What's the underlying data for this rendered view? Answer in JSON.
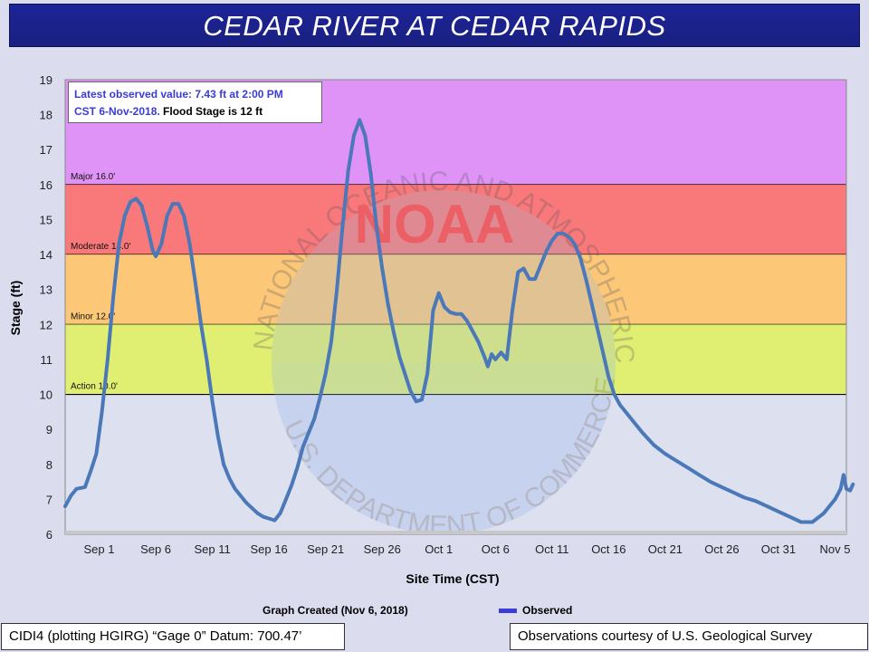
{
  "header": {
    "title": "CEDAR RIVER AT CEDAR RAPIDS"
  },
  "info": {
    "line1": "Latest observed value: 7.43 ft at 2:00 PM",
    "line2_blue": "CST 6-Nov-2018.",
    "line2_black": "Flood Stage is 12 ft"
  },
  "footer": {
    "created": "Graph Created (Nov 6, 2018)",
    "legend_label": "Observed",
    "datum": "CIDI4 (plotting HGIRG) “Gage 0” Datum: 700.47’",
    "courtesy": "Observations courtesy of U.S. Geological Survey"
  },
  "colors": {
    "line": "#4a78b8",
    "major": "#e08cf6",
    "moderate": "#fb6f6f",
    "minor": "#fec66e",
    "action": "#dff066",
    "normal": "#dde0ee"
  },
  "watermark": {
    "ring_text": "NATIONAL OCEANIC AND ATMOSPHERIC ADMINISTRATION",
    "bottom_text": "U.S. DEPARTMENT OF COMMERCE",
    "logo": "NOAA"
  },
  "chart_data": {
    "type": "line",
    "xlabel": "Site Time (CST)",
    "ylabel": "Stage (ft)",
    "ylim": [
      6,
      19
    ],
    "xlim": [
      "2018-08-29",
      "2018-11-06"
    ],
    "yticks": [
      6,
      7,
      8,
      9,
      10,
      11,
      12,
      13,
      14,
      15,
      16,
      17,
      18,
      19
    ],
    "xticks": [
      {
        "date": "2018-09-01",
        "label": "Sep 1"
      },
      {
        "date": "2018-09-06",
        "label": "Sep 6"
      },
      {
        "date": "2018-09-11",
        "label": "Sep 11"
      },
      {
        "date": "2018-09-16",
        "label": "Sep 16"
      },
      {
        "date": "2018-09-21",
        "label": "Sep 21"
      },
      {
        "date": "2018-09-26",
        "label": "Sep 26"
      },
      {
        "date": "2018-10-01",
        "label": "Oct 1"
      },
      {
        "date": "2018-10-06",
        "label": "Oct 6"
      },
      {
        "date": "2018-10-11",
        "label": "Oct 11"
      },
      {
        "date": "2018-10-16",
        "label": "Oct 16"
      },
      {
        "date": "2018-10-21",
        "label": "Oct 21"
      },
      {
        "date": "2018-10-26",
        "label": "Oct 26"
      },
      {
        "date": "2018-10-31",
        "label": "Oct 31"
      },
      {
        "date": "2018-11-05",
        "label": "Nov 5"
      }
    ],
    "zones": [
      {
        "name": "Major 16.0'",
        "from": 16,
        "to": 19,
        "color": "#e08cf6"
      },
      {
        "name": "Moderate 14.0'",
        "from": 14,
        "to": 16,
        "color": "#fb6f6f"
      },
      {
        "name": "Minor 12.0'",
        "from": 12,
        "to": 14,
        "color": "#fec66e"
      },
      {
        "name": "Action 10.0'",
        "from": 10,
        "to": 12,
        "color": "#dff066"
      }
    ],
    "series": [
      {
        "name": "Observed",
        "points": [
          [
            "2018-08-29T00:00",
            6.8
          ],
          [
            "2018-08-29T12:00",
            7.1
          ],
          [
            "2018-08-30T00:00",
            7.3
          ],
          [
            "2018-08-30T18:00",
            7.35
          ],
          [
            "2018-08-31T06:00",
            7.8
          ],
          [
            "2018-08-31T18:00",
            8.3
          ],
          [
            "2018-09-01T06:00",
            9.5
          ],
          [
            "2018-09-01T18:00",
            11.0
          ],
          [
            "2018-09-02T06:00",
            12.8
          ],
          [
            "2018-09-02T18:00",
            14.3
          ],
          [
            "2018-09-03T06:00",
            15.1
          ],
          [
            "2018-09-03T18:00",
            15.5
          ],
          [
            "2018-09-04T06:00",
            15.6
          ],
          [
            "2018-09-04T18:00",
            15.4
          ],
          [
            "2018-09-05T06:00",
            14.8
          ],
          [
            "2018-09-05T18:00",
            14.1
          ],
          [
            "2018-09-06T00:00",
            13.95
          ],
          [
            "2018-09-06T12:00",
            14.3
          ],
          [
            "2018-09-07T00:00",
            15.1
          ],
          [
            "2018-09-07T12:00",
            15.45
          ],
          [
            "2018-09-08T00:00",
            15.45
          ],
          [
            "2018-09-08T12:00",
            15.1
          ],
          [
            "2018-09-09T00:00",
            14.3
          ],
          [
            "2018-09-09T12:00",
            13.2
          ],
          [
            "2018-09-10T00:00",
            12.0
          ],
          [
            "2018-09-10T12:00",
            11.0
          ],
          [
            "2018-09-11T00:00",
            9.8
          ],
          [
            "2018-09-11T12:00",
            8.8
          ],
          [
            "2018-09-12T00:00",
            8.0
          ],
          [
            "2018-09-12T12:00",
            7.6
          ],
          [
            "2018-09-13T00:00",
            7.3
          ],
          [
            "2018-09-14T00:00",
            6.9
          ],
          [
            "2018-09-15T00:00",
            6.6
          ],
          [
            "2018-09-15T12:00",
            6.5
          ],
          [
            "2018-09-16T00:00",
            6.45
          ],
          [
            "2018-09-16T12:00",
            6.4
          ],
          [
            "2018-09-17T00:00",
            6.6
          ],
          [
            "2018-09-17T12:00",
            7.0
          ],
          [
            "2018-09-18T00:00",
            7.4
          ],
          [
            "2018-09-18T12:00",
            7.9
          ],
          [
            "2018-09-19T00:00",
            8.5
          ],
          [
            "2018-09-19T12:00",
            8.9
          ],
          [
            "2018-09-20T00:00",
            9.3
          ],
          [
            "2018-09-20T12:00",
            9.9
          ],
          [
            "2018-09-21T00:00",
            10.6
          ],
          [
            "2018-09-21T12:00",
            11.5
          ],
          [
            "2018-09-22T00:00",
            13.0
          ],
          [
            "2018-09-22T12:00",
            14.8
          ],
          [
            "2018-09-23T00:00",
            16.4
          ],
          [
            "2018-09-23T12:00",
            17.4
          ],
          [
            "2018-09-24T00:00",
            17.85
          ],
          [
            "2018-09-24T12:00",
            17.4
          ],
          [
            "2018-09-25T00:00",
            16.3
          ],
          [
            "2018-09-25T12:00",
            14.8
          ],
          [
            "2018-09-26T00:00",
            13.6
          ],
          [
            "2018-09-26T12:00",
            12.6
          ],
          [
            "2018-09-27T00:00",
            11.8
          ],
          [
            "2018-09-27T12:00",
            11.1
          ],
          [
            "2018-09-28T00:00",
            10.6
          ],
          [
            "2018-09-28T12:00",
            10.1
          ],
          [
            "2018-09-29T00:00",
            9.8
          ],
          [
            "2018-09-29T12:00",
            9.85
          ],
          [
            "2018-09-30T00:00",
            10.6
          ],
          [
            "2018-09-30T12:00",
            12.4
          ],
          [
            "2018-10-01T00:00",
            12.9
          ],
          [
            "2018-10-01T12:00",
            12.5
          ],
          [
            "2018-10-02T00:00",
            12.35
          ],
          [
            "2018-10-02T12:00",
            12.3
          ],
          [
            "2018-10-03T00:00",
            12.3
          ],
          [
            "2018-10-03T12:00",
            12.1
          ],
          [
            "2018-10-04T00:00",
            11.8
          ],
          [
            "2018-10-04T12:00",
            11.5
          ],
          [
            "2018-10-05T00:00",
            11.1
          ],
          [
            "2018-10-05T08:00",
            10.8
          ],
          [
            "2018-10-05T16:00",
            11.15
          ],
          [
            "2018-10-06T00:00",
            11.0
          ],
          [
            "2018-10-06T12:00",
            11.2
          ],
          [
            "2018-10-07T00:00",
            11.0
          ],
          [
            "2018-10-07T12:00",
            12.4
          ],
          [
            "2018-10-08T00:00",
            13.5
          ],
          [
            "2018-10-08T12:00",
            13.6
          ],
          [
            "2018-10-09T00:00",
            13.3
          ],
          [
            "2018-10-09T12:00",
            13.3
          ],
          [
            "2018-10-10T00:00",
            13.7
          ],
          [
            "2018-10-10T12:00",
            14.1
          ],
          [
            "2018-10-11T00:00",
            14.4
          ],
          [
            "2018-10-11T12:00",
            14.6
          ],
          [
            "2018-10-12T00:00",
            14.6
          ],
          [
            "2018-10-12T12:00",
            14.5
          ],
          [
            "2018-10-13T00:00",
            14.3
          ],
          [
            "2018-10-13T12:00",
            13.9
          ],
          [
            "2018-10-14T00:00",
            13.3
          ],
          [
            "2018-10-14T12:00",
            12.6
          ],
          [
            "2018-10-15T00:00",
            11.9
          ],
          [
            "2018-10-15T12:00",
            11.2
          ],
          [
            "2018-10-16T00:00",
            10.5
          ],
          [
            "2018-10-16T12:00",
            10.0
          ],
          [
            "2018-10-17T00:00",
            9.7
          ],
          [
            "2018-10-17T12:00",
            9.5
          ],
          [
            "2018-10-18T00:00",
            9.3
          ],
          [
            "2018-10-19T00:00",
            8.9
          ],
          [
            "2018-10-20T00:00",
            8.55
          ],
          [
            "2018-10-21T00:00",
            8.3
          ],
          [
            "2018-10-22T00:00",
            8.1
          ],
          [
            "2018-10-23T00:00",
            7.9
          ],
          [
            "2018-10-24T00:00",
            7.7
          ],
          [
            "2018-10-25T00:00",
            7.5
          ],
          [
            "2018-10-26T00:00",
            7.35
          ],
          [
            "2018-10-27T00:00",
            7.2
          ],
          [
            "2018-10-28T00:00",
            7.05
          ],
          [
            "2018-10-29T00:00",
            6.95
          ],
          [
            "2018-10-30T00:00",
            6.8
          ],
          [
            "2018-10-31T00:00",
            6.65
          ],
          [
            "2018-11-01T00:00",
            6.5
          ],
          [
            "2018-11-02T00:00",
            6.35
          ],
          [
            "2018-11-03T00:00",
            6.35
          ],
          [
            "2018-11-04T00:00",
            6.6
          ],
          [
            "2018-11-05T00:00",
            7.0
          ],
          [
            "2018-11-05T12:00",
            7.3
          ],
          [
            "2018-11-05T18:00",
            7.7
          ],
          [
            "2018-11-06T00:00",
            7.3
          ],
          [
            "2018-11-06T08:00",
            7.25
          ],
          [
            "2018-11-06T14:00",
            7.43
          ]
        ]
      }
    ]
  }
}
